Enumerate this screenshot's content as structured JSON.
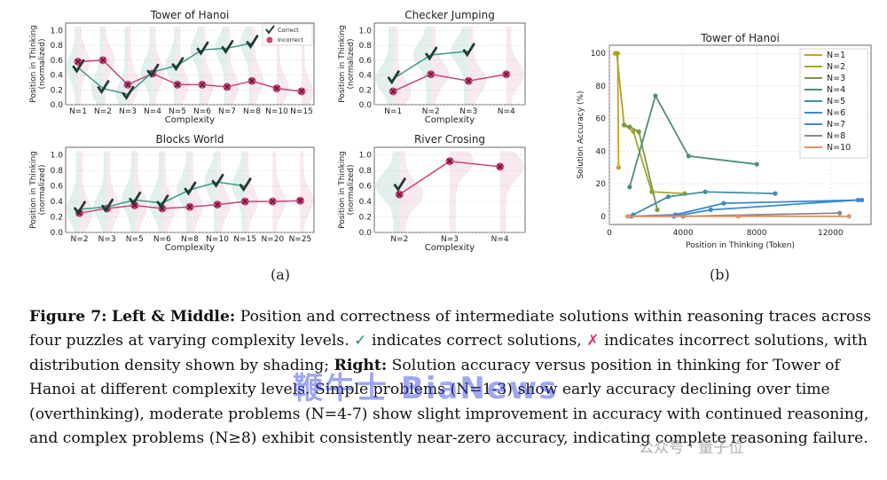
{
  "panels_a": [
    {
      "id": "hanoi",
      "title": "Tower of Hanoi",
      "ylabel": "Position in Thinking\n(normalized)",
      "xlabel": "Complexity",
      "categories": [
        "N=1",
        "N=2",
        "N=3",
        "N=4",
        "N=5",
        "N=6",
        "N=7",
        "N=8",
        "N=10",
        "N=15"
      ],
      "correct": [
        0.5,
        0.22,
        0.14,
        0.44,
        0.53,
        0.74,
        0.76,
        0.83,
        null,
        null
      ],
      "incorrect": [
        0.58,
        0.6,
        0.27,
        0.42,
        0.27,
        0.27,
        0.24,
        0.32,
        0.22,
        0.18
      ],
      "yticks": [
        0.0,
        0.2,
        0.4,
        0.6,
        0.8,
        1.0
      ],
      "legend": {
        "correct": "Correct",
        "incorrect": "Incorrect"
      }
    },
    {
      "id": "checker",
      "title": "Checker Jumping",
      "ylabel": "Position in Thinking\n(normalized)",
      "xlabel": "Complexity",
      "categories": [
        "N=1",
        "N=2",
        "N=3",
        "N=4"
      ],
      "correct": [
        0.35,
        0.67,
        0.72,
        null
      ],
      "incorrect": [
        0.18,
        0.41,
        0.32,
        0.41
      ],
      "yticks": [
        0.0,
        0.2,
        0.4,
        0.6,
        0.8,
        1.0
      ]
    },
    {
      "id": "blocks",
      "title": "Blocks World",
      "ylabel": "Position in Thinking\n(normalized)",
      "xlabel": "Complexity",
      "categories": [
        "N=2",
        "N=3",
        "N=5",
        "N=6",
        "N=8",
        "N=10",
        "N=15",
        "N=20",
        "N=25"
      ],
      "correct": [
        0.3,
        0.33,
        0.42,
        0.38,
        0.55,
        0.65,
        0.6,
        null,
        null
      ],
      "incorrect": [
        0.25,
        0.31,
        0.35,
        0.31,
        0.33,
        0.36,
        0.4,
        0.4,
        0.41
      ],
      "yticks": [
        0.0,
        0.2,
        0.4,
        0.6,
        0.8,
        1.0
      ]
    },
    {
      "id": "river",
      "title": "River Crosing",
      "ylabel": "Position in Thinking\n(normalized)",
      "xlabel": "Complexity",
      "categories": [
        "N=2",
        "N=3",
        "N=4"
      ],
      "correct": [
        0.6,
        null,
        null
      ],
      "incorrect": [
        0.49,
        0.92,
        0.85
      ],
      "yticks": [
        0.0,
        0.2,
        0.4,
        0.6,
        0.8,
        1.0
      ]
    }
  ],
  "chart_data": {
    "type": "line",
    "title": "Tower of Hanoi",
    "xlabel": "Position in Thinking (Token)",
    "ylabel": "Solution Accuracy (%)",
    "xticks": [
      0,
      4000,
      8000,
      12000
    ],
    "yticks": [
      0,
      20,
      40,
      60,
      80,
      100
    ],
    "series": [
      {
        "name": "N=1",
        "color": "#c8a21e",
        "x": [
          300,
          350,
          400,
          450,
          500
        ],
        "y": [
          100,
          100,
          100,
          100,
          30
        ]
      },
      {
        "name": "N=2",
        "color": "#a3a62a",
        "x": [
          400,
          800,
          1300,
          2300,
          4100
        ],
        "y": [
          100,
          56,
          52,
          15,
          14
        ]
      },
      {
        "name": "N=3",
        "color": "#789848",
        "x": [
          800,
          1100,
          1600,
          2600
        ],
        "y": [
          56,
          55,
          52,
          4
        ]
      },
      {
        "name": "N=4",
        "color": "#4f8f72",
        "x": [
          1100,
          2500,
          4300,
          8000
        ],
        "y": [
          18,
          74,
          37,
          32
        ]
      },
      {
        "name": "N=5",
        "color": "#3f8fa8",
        "x": [
          1300,
          3200,
          5200,
          9000
        ],
        "y": [
          1,
          12,
          15,
          14
        ]
      },
      {
        "name": "N=6",
        "color": "#3a8cc9",
        "x": [
          3500,
          5500,
          13500
        ],
        "y": [
          0,
          4,
          10
        ]
      },
      {
        "name": "N=7",
        "color": "#3d86d6",
        "x": [
          1200,
          3600,
          6200,
          13700
        ],
        "y": [
          0,
          1,
          8,
          10
        ]
      },
      {
        "name": "N=8",
        "color": "#8a8a8a",
        "x": [
          1000,
          4000,
          12500
        ],
        "y": [
          0,
          0,
          2
        ]
      },
      {
        "name": "N=10",
        "color": "#e0936a",
        "x": [
          1000,
          7000,
          13000
        ],
        "y": [
          0,
          0,
          0
        ]
      }
    ]
  },
  "labels": {
    "a": "(a)",
    "b": "(b)"
  },
  "caption": {
    "fig": "Figure 7:",
    "left_mid": "Left & Middle:",
    "part1": " Position and correctness of intermediate solutions within reasoning traces across four puzzles at varying complexity levels. ",
    "check": "✓",
    "part2": " indicates correct solutions, ",
    "cross": "✗",
    "part3": " indicates incorrect solutions, with distribution density shown by shading; ",
    "right": "Right:",
    "part4": " Solution accuracy versus position in thinking for Tower of Hanoi at different complexity levels. Simple problems (N=1-3) show early accuracy declining over time (overthinking), moderate problems (N=4-7) show slight improvement in accuracy with continued reasoning, and complex problems (N≥8) exhibit consistently near-zero accuracy, indicating complete reasoning failure."
  },
  "watermarks": {
    "main": "鞭牛士 BiaNews",
    "sub": "公众号 · 量子位"
  },
  "colors": {
    "correct": "#3e9a86",
    "incorrect": "#c9447a"
  }
}
